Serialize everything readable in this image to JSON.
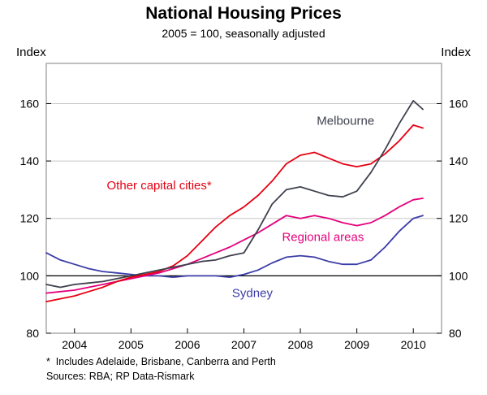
{
  "chart_data": {
    "type": "line",
    "title": "National Housing Prices",
    "subtitle": "2005 = 100, seasonally adjusted",
    "ylabel_left": "Index",
    "ylabel_right": "Index",
    "footnotes": [
      "*  Includes Adelaide, Brisbane, Canberra and Perth",
      "Sources: RBA; RP Data-Rismark"
    ],
    "xlim": [
      2003.5,
      2010.5
    ],
    "ylim": [
      80,
      174
    ],
    "yticks": [
      80,
      100,
      120,
      140,
      160
    ],
    "xticks": [
      2004,
      2005,
      2006,
      2007,
      2008,
      2009,
      2010
    ],
    "baseline": 100,
    "grid": "horizontal",
    "grid_color": "#c8c8c8",
    "baseline_color": "#000000",
    "border_color": "#7f7f7f",
    "x": [
      2003.5,
      2003.75,
      2004,
      2004.25,
      2004.5,
      2004.75,
      2005,
      2005.25,
      2005.5,
      2005.75,
      2006,
      2006.25,
      2006.5,
      2006.75,
      2007,
      2007.25,
      2007.5,
      2007.75,
      2008,
      2008.25,
      2008.5,
      2008.75,
      2009,
      2009.25,
      2009.5,
      2009.75,
      2010,
      2010.17
    ],
    "series": [
      {
        "name": "Sydney",
        "color": "#3c3ca8",
        "label_pos": [
          2007.15,
          94
        ],
        "values": [
          108,
          105.5,
          104,
          102.5,
          101.5,
          101,
          100.5,
          100,
          100,
          99.5,
          100,
          100,
          100,
          99.5,
          100.5,
          102,
          104.5,
          106.5,
          107,
          106.5,
          105,
          104,
          104,
          105.5,
          110,
          115.5,
          120,
          121
        ]
      },
      {
        "name": "Regional areas",
        "color": "#e4007c",
        "label_pos": [
          2008.4,
          113.5
        ],
        "values": [
          94,
          94.5,
          95,
          96,
          97,
          98,
          99,
          100,
          101,
          102.5,
          104,
          106,
          108,
          110,
          112.5,
          115,
          118,
          121,
          120,
          121,
          120,
          118.5,
          117.5,
          118.5,
          121,
          124,
          126.5,
          127
        ]
      },
      {
        "name": "Other capital cities*",
        "color": "#e60012",
        "label_pos": [
          2005.5,
          131.5
        ],
        "values": [
          91,
          92,
          93,
          94.5,
          96,
          98,
          99.5,
          100.5,
          101.5,
          103.5,
          107,
          112,
          117,
          121,
          124,
          128,
          133,
          139,
          142,
          143,
          141,
          139,
          138,
          139,
          142.5,
          147,
          152.5,
          151.5
        ]
      },
      {
        "name": "Melbourne",
        "color": "#3e414e",
        "label_pos": [
          2008.8,
          154
        ],
        "values": [
          97,
          96,
          97,
          97.5,
          98,
          99,
          100,
          101,
          102,
          103,
          104,
          105,
          105.5,
          107,
          108,
          116,
          125,
          130,
          131,
          129.5,
          128,
          127.5,
          129.5,
          136,
          144,
          153,
          161,
          158
        ]
      }
    ]
  }
}
